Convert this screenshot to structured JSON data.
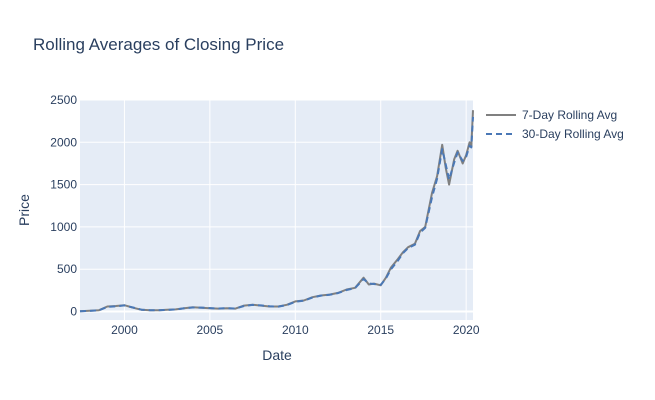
{
  "chart_data": {
    "type": "line",
    "title": "Rolling Averages of Closing Price",
    "xlabel": "Date",
    "ylabel": "Price",
    "x_ticks": [
      "2000",
      "2005",
      "2010",
      "2015",
      "2020"
    ],
    "y_ticks": [
      "0",
      "500",
      "1000",
      "1500",
      "2000",
      "2500"
    ],
    "xlim": [
      1997.4,
      2020.4
    ],
    "ylim": [
      -100,
      2500
    ],
    "grid": true,
    "legend_position": "top-right",
    "plot_background": "#e5ecf6",
    "series": [
      {
        "name": "7-Day Rolling Avg",
        "color": "#808080",
        "dash": "solid",
        "x": [
          1997.4,
          1998.5,
          1999.0,
          1999.5,
          2000.0,
          2000.5,
          2001.0,
          2001.5,
          2002.0,
          2002.5,
          2003.0,
          2003.5,
          2004.0,
          2004.5,
          2005.0,
          2005.5,
          2006.0,
          2006.5,
          2007.0,
          2007.5,
          2008.0,
          2008.5,
          2009.0,
          2009.5,
          2010.0,
          2010.5,
          2011.0,
          2011.5,
          2012.0,
          2012.5,
          2013.0,
          2013.5,
          2014.0,
          2014.3,
          2014.6,
          2015.0,
          2015.3,
          2015.6,
          2016.0,
          2016.3,
          2016.6,
          2017.0,
          2017.3,
          2017.6,
          2018.0,
          2018.3,
          2018.6,
          2018.8,
          2019.0,
          2019.3,
          2019.5,
          2019.8,
          2020.0,
          2020.2,
          2020.3,
          2020.4
        ],
        "values": [
          3,
          15,
          60,
          65,
          75,
          45,
          20,
          15,
          15,
          20,
          25,
          40,
          50,
          45,
          40,
          35,
          40,
          35,
          70,
          80,
          70,
          60,
          60,
          80,
          120,
          130,
          170,
          190,
          200,
          220,
          260,
          280,
          400,
          320,
          330,
          310,
          400,
          520,
          620,
          700,
          760,
          800,
          950,
          1000,
          1400,
          1600,
          1970,
          1700,
          1500,
          1800,
          1900,
          1750,
          1850,
          2000,
          1950,
          2380
        ]
      },
      {
        "name": "30-Day Rolling Avg",
        "color": "#4a78b6",
        "dash": "dash",
        "x": [
          1997.4,
          1998.5,
          1999.0,
          1999.5,
          2000.0,
          2000.5,
          2001.0,
          2001.5,
          2002.0,
          2002.5,
          2003.0,
          2003.5,
          2004.0,
          2004.5,
          2005.0,
          2005.5,
          2006.0,
          2006.5,
          2007.0,
          2007.5,
          2008.0,
          2008.5,
          2009.0,
          2009.5,
          2010.0,
          2010.5,
          2011.0,
          2011.5,
          2012.0,
          2012.5,
          2013.0,
          2013.5,
          2014.0,
          2014.3,
          2014.6,
          2015.0,
          2015.3,
          2015.6,
          2016.0,
          2016.3,
          2016.6,
          2017.0,
          2017.3,
          2017.6,
          2018.0,
          2018.3,
          2018.6,
          2018.8,
          2019.0,
          2019.3,
          2019.5,
          2019.8,
          2020.0,
          2020.2,
          2020.3,
          2020.4
        ],
        "values": [
          3,
          14,
          55,
          62,
          72,
          48,
          22,
          16,
          15,
          19,
          24,
          38,
          48,
          46,
          41,
          36,
          39,
          36,
          66,
          78,
          72,
          62,
          58,
          76,
          115,
          128,
          165,
          188,
          198,
          218,
          255,
          278,
          385,
          330,
          325,
          315,
          390,
          500,
          600,
          690,
          750,
          790,
          930,
          990,
          1350,
          1570,
          1920,
          1740,
          1560,
          1760,
          1880,
          1780,
          1830,
          1960,
          1940,
          2300
        ]
      }
    ]
  }
}
